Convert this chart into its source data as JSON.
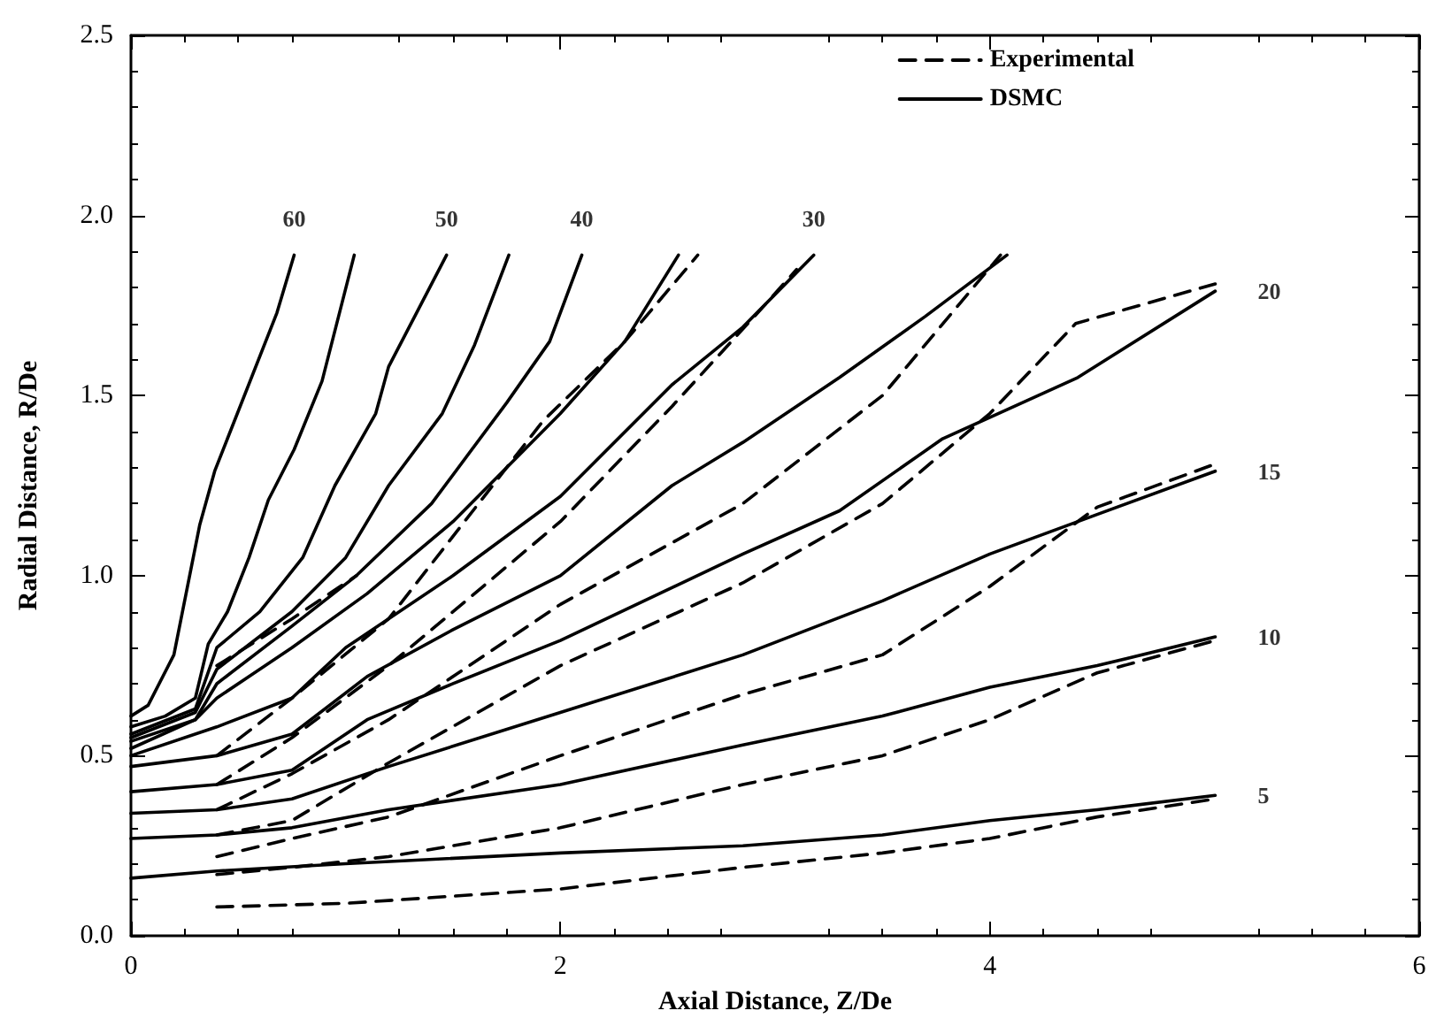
{
  "chart_data": {
    "type": "line",
    "xlabel": "Axial Distance, Z/De",
    "ylabel": "Radial Distance, R/De",
    "xlim": [
      0,
      6
    ],
    "xticks": [
      0,
      2,
      4,
      6
    ],
    "ylim": [
      0,
      2.5
    ],
    "yticks": [
      {
        "value": 0,
        "label": "0.0"
      },
      {
        "value": 0.5,
        "label": "0.5"
      },
      {
        "value": 1,
        "label": "1.0"
      },
      {
        "value": 1.5,
        "label": "1.5"
      },
      {
        "value": 2,
        "label": "2.0"
      },
      {
        "value": 2.5,
        "label": "2.5"
      }
    ],
    "grid": false,
    "legend": "top right",
    "marker": "none",
    "annotations": [
      {
        "text": "60",
        "x": 0.76,
        "y": 1.89
      },
      {
        "text": "50",
        "x": 1.47,
        "y": 1.89
      },
      {
        "text": "40",
        "x": 2.1,
        "y": 1.89
      },
      {
        "text": "30",
        "x": 3.18,
        "y": 1.89
      },
      {
        "text": "20",
        "x": 5.05,
        "y": 1.79
      },
      {
        "text": "15",
        "x": 5.05,
        "y": 1.29
      },
      {
        "text": "10",
        "x": 5.05,
        "y": 0.83
      },
      {
        "text": "5",
        "x": 5.05,
        "y": 0.39
      }
    ],
    "series": [
      {
        "name": "Experimental",
        "color": "#000000",
        "line_style": "dashed",
        "x": [
          0.4,
          1,
          2,
          2.85,
          3.5,
          4,
          4.5,
          5.05
        ],
        "values": [
          0.08,
          0.09,
          0.13,
          0.19,
          0.23,
          0.27,
          0.33,
          0.38
        ]
      },
      {
        "color": "#000000",
        "line_style": "dashed",
        "x": [
          0.4,
          0.75,
          1.2,
          2,
          2.85,
          3.5,
          4,
          4.5,
          5.05
        ],
        "values": [
          0.17,
          0.19,
          0.22,
          0.3,
          0.42,
          0.5,
          0.6,
          0.73,
          0.82
        ]
      },
      {
        "color": "#000000",
        "line_style": "dashed",
        "x": [
          0.4,
          0.75,
          1.2,
          2,
          2.85,
          3.5,
          4,
          4.5,
          5.05
        ],
        "values": [
          0.22,
          0.27,
          0.33,
          0.5,
          0.67,
          0.78,
          0.97,
          1.19,
          1.31
        ]
      },
      {
        "color": "#000000",
        "line_style": "dashed",
        "x": [
          0.4,
          0.75,
          1.2,
          2,
          2.85,
          3.5,
          4,
          4.4,
          5.05
        ],
        "values": [
          0.28,
          0.32,
          0.48,
          0.75,
          0.98,
          1.2,
          1.45,
          1.7,
          1.81
        ]
      },
      {
        "color": "#000000",
        "line_style": "dashed",
        "x": [
          0.4,
          0.75,
          1.2,
          2,
          2.85,
          3.5,
          4.05
        ],
        "values": [
          0.35,
          0.45,
          0.6,
          0.92,
          1.2,
          1.5,
          1.89
        ]
      },
      {
        "color": "#000000",
        "line_style": "dashed",
        "x": [
          0.4,
          0.75,
          1.2,
          2,
          2.52,
          2.95,
          3.1
        ],
        "values": [
          0.42,
          0.55,
          0.75,
          1.15,
          1.47,
          1.75,
          1.85
        ]
      },
      {
        "color": "#000000",
        "line_style": "dashed",
        "x": [
          0.4,
          0.75,
          1.2,
          1.92,
          2.3,
          2.64
        ],
        "values": [
          0.5,
          0.66,
          0.88,
          1.43,
          1.65,
          1.89
        ]
      },
      {
        "color": "#000000",
        "line_style": "dashed",
        "x": [
          0.4,
          0.75,
          1.05
        ],
        "values": [
          0.75,
          0.88,
          1.0
        ]
      },
      {
        "name": "DSMC",
        "color": "#000000",
        "line_style": "solid",
        "x": [
          0,
          0.4,
          1,
          2,
          2.85,
          3.5,
          4,
          4.5,
          5.05
        ],
        "values": [
          0.16,
          0.18,
          0.2,
          0.23,
          0.25,
          0.28,
          0.32,
          0.35,
          0.39
        ]
      },
      {
        "color": "#000000",
        "line_style": "solid",
        "x": [
          0,
          0.4,
          0.75,
          1.2,
          2,
          2.85,
          3.5,
          4,
          4.5,
          5.05
        ],
        "values": [
          0.27,
          0.28,
          0.3,
          0.35,
          0.42,
          0.53,
          0.61,
          0.69,
          0.75,
          0.83
        ]
      },
      {
        "color": "#000000",
        "line_style": "solid",
        "x": [
          0,
          0.4,
          0.75,
          1.2,
          2,
          2.85,
          3.5,
          4,
          4.5,
          5.05
        ],
        "values": [
          0.34,
          0.35,
          0.38,
          0.47,
          0.62,
          0.78,
          0.93,
          1.06,
          1.17,
          1.29
        ]
      },
      {
        "color": "#000000",
        "line_style": "solid",
        "x": [
          0,
          0.4,
          0.75,
          1.1,
          1.5,
          2,
          2.85,
          3.3,
          3.78,
          4.41,
          5.05
        ],
        "values": [
          0.4,
          0.42,
          0.46,
          0.6,
          0.7,
          0.82,
          1.06,
          1.18,
          1.38,
          1.55,
          1.79
        ]
      },
      {
        "color": "#000000",
        "line_style": "solid",
        "x": [
          0,
          0.4,
          0.75,
          1.1,
          1.5,
          2,
          2.52,
          2.85,
          3.3,
          3.7,
          4.08
        ],
        "values": [
          0.47,
          0.5,
          0.56,
          0.72,
          0.85,
          1.0,
          1.25,
          1.37,
          1.55,
          1.72,
          1.89
        ]
      },
      {
        "color": "#000000",
        "line_style": "solid",
        "x": [
          0,
          0.4,
          0.75,
          1,
          1.5,
          2,
          2.52,
          2.85,
          3.18
        ],
        "values": [
          0.5,
          0.58,
          0.66,
          0.8,
          1.0,
          1.22,
          1.53,
          1.69,
          1.89
        ]
      },
      {
        "color": "#000000",
        "line_style": "solid",
        "x": [
          0,
          0.3,
          0.4,
          0.75,
          1.1,
          1.5,
          2,
          2.3,
          2.55
        ],
        "values": [
          0.52,
          0.6,
          0.66,
          0.8,
          0.95,
          1.15,
          1.45,
          1.65,
          1.89
        ]
      },
      {
        "color": "#000000",
        "line_style": "solid",
        "x": [
          0,
          0.3,
          0.4,
          0.75,
          1.05,
          1.4,
          1.75,
          1.95,
          2.1
        ],
        "values": [
          0.54,
          0.6,
          0.7,
          0.86,
          1.0,
          1.2,
          1.48,
          1.65,
          1.89
        ]
      },
      {
        "color": "#000000",
        "line_style": "solid",
        "x": [
          0,
          0.3,
          0.4,
          0.75,
          1,
          1.2,
          1.45,
          1.6,
          1.76
        ],
        "values": [
          0.55,
          0.62,
          0.74,
          0.9,
          1.05,
          1.25,
          1.45,
          1.64,
          1.89
        ]
      },
      {
        "color": "#000000",
        "line_style": "solid",
        "x": [
          0,
          0.3,
          0.4,
          0.6,
          0.8,
          0.95,
          1.14,
          1.2,
          1.47
        ],
        "values": [
          0.56,
          0.63,
          0.8,
          0.9,
          1.05,
          1.25,
          1.45,
          1.58,
          1.89
        ]
      },
      {
        "color": "#000000",
        "line_style": "solid",
        "x": [
          0,
          0.16,
          0.3,
          0.36,
          0.45,
          0.55,
          0.64,
          0.76,
          0.89,
          1.04
        ],
        "values": [
          0.58,
          0.61,
          0.66,
          0.81,
          0.9,
          1.05,
          1.21,
          1.35,
          1.54,
          1.89
        ]
      },
      {
        "color": "#000000",
        "line_style": "solid",
        "x": [
          0,
          0.08,
          0.2,
          0.32,
          0.39,
          0.68,
          0.76
        ],
        "values": [
          0.61,
          0.64,
          0.78,
          1.14,
          1.29,
          1.73,
          1.89
        ]
      }
    ]
  }
}
